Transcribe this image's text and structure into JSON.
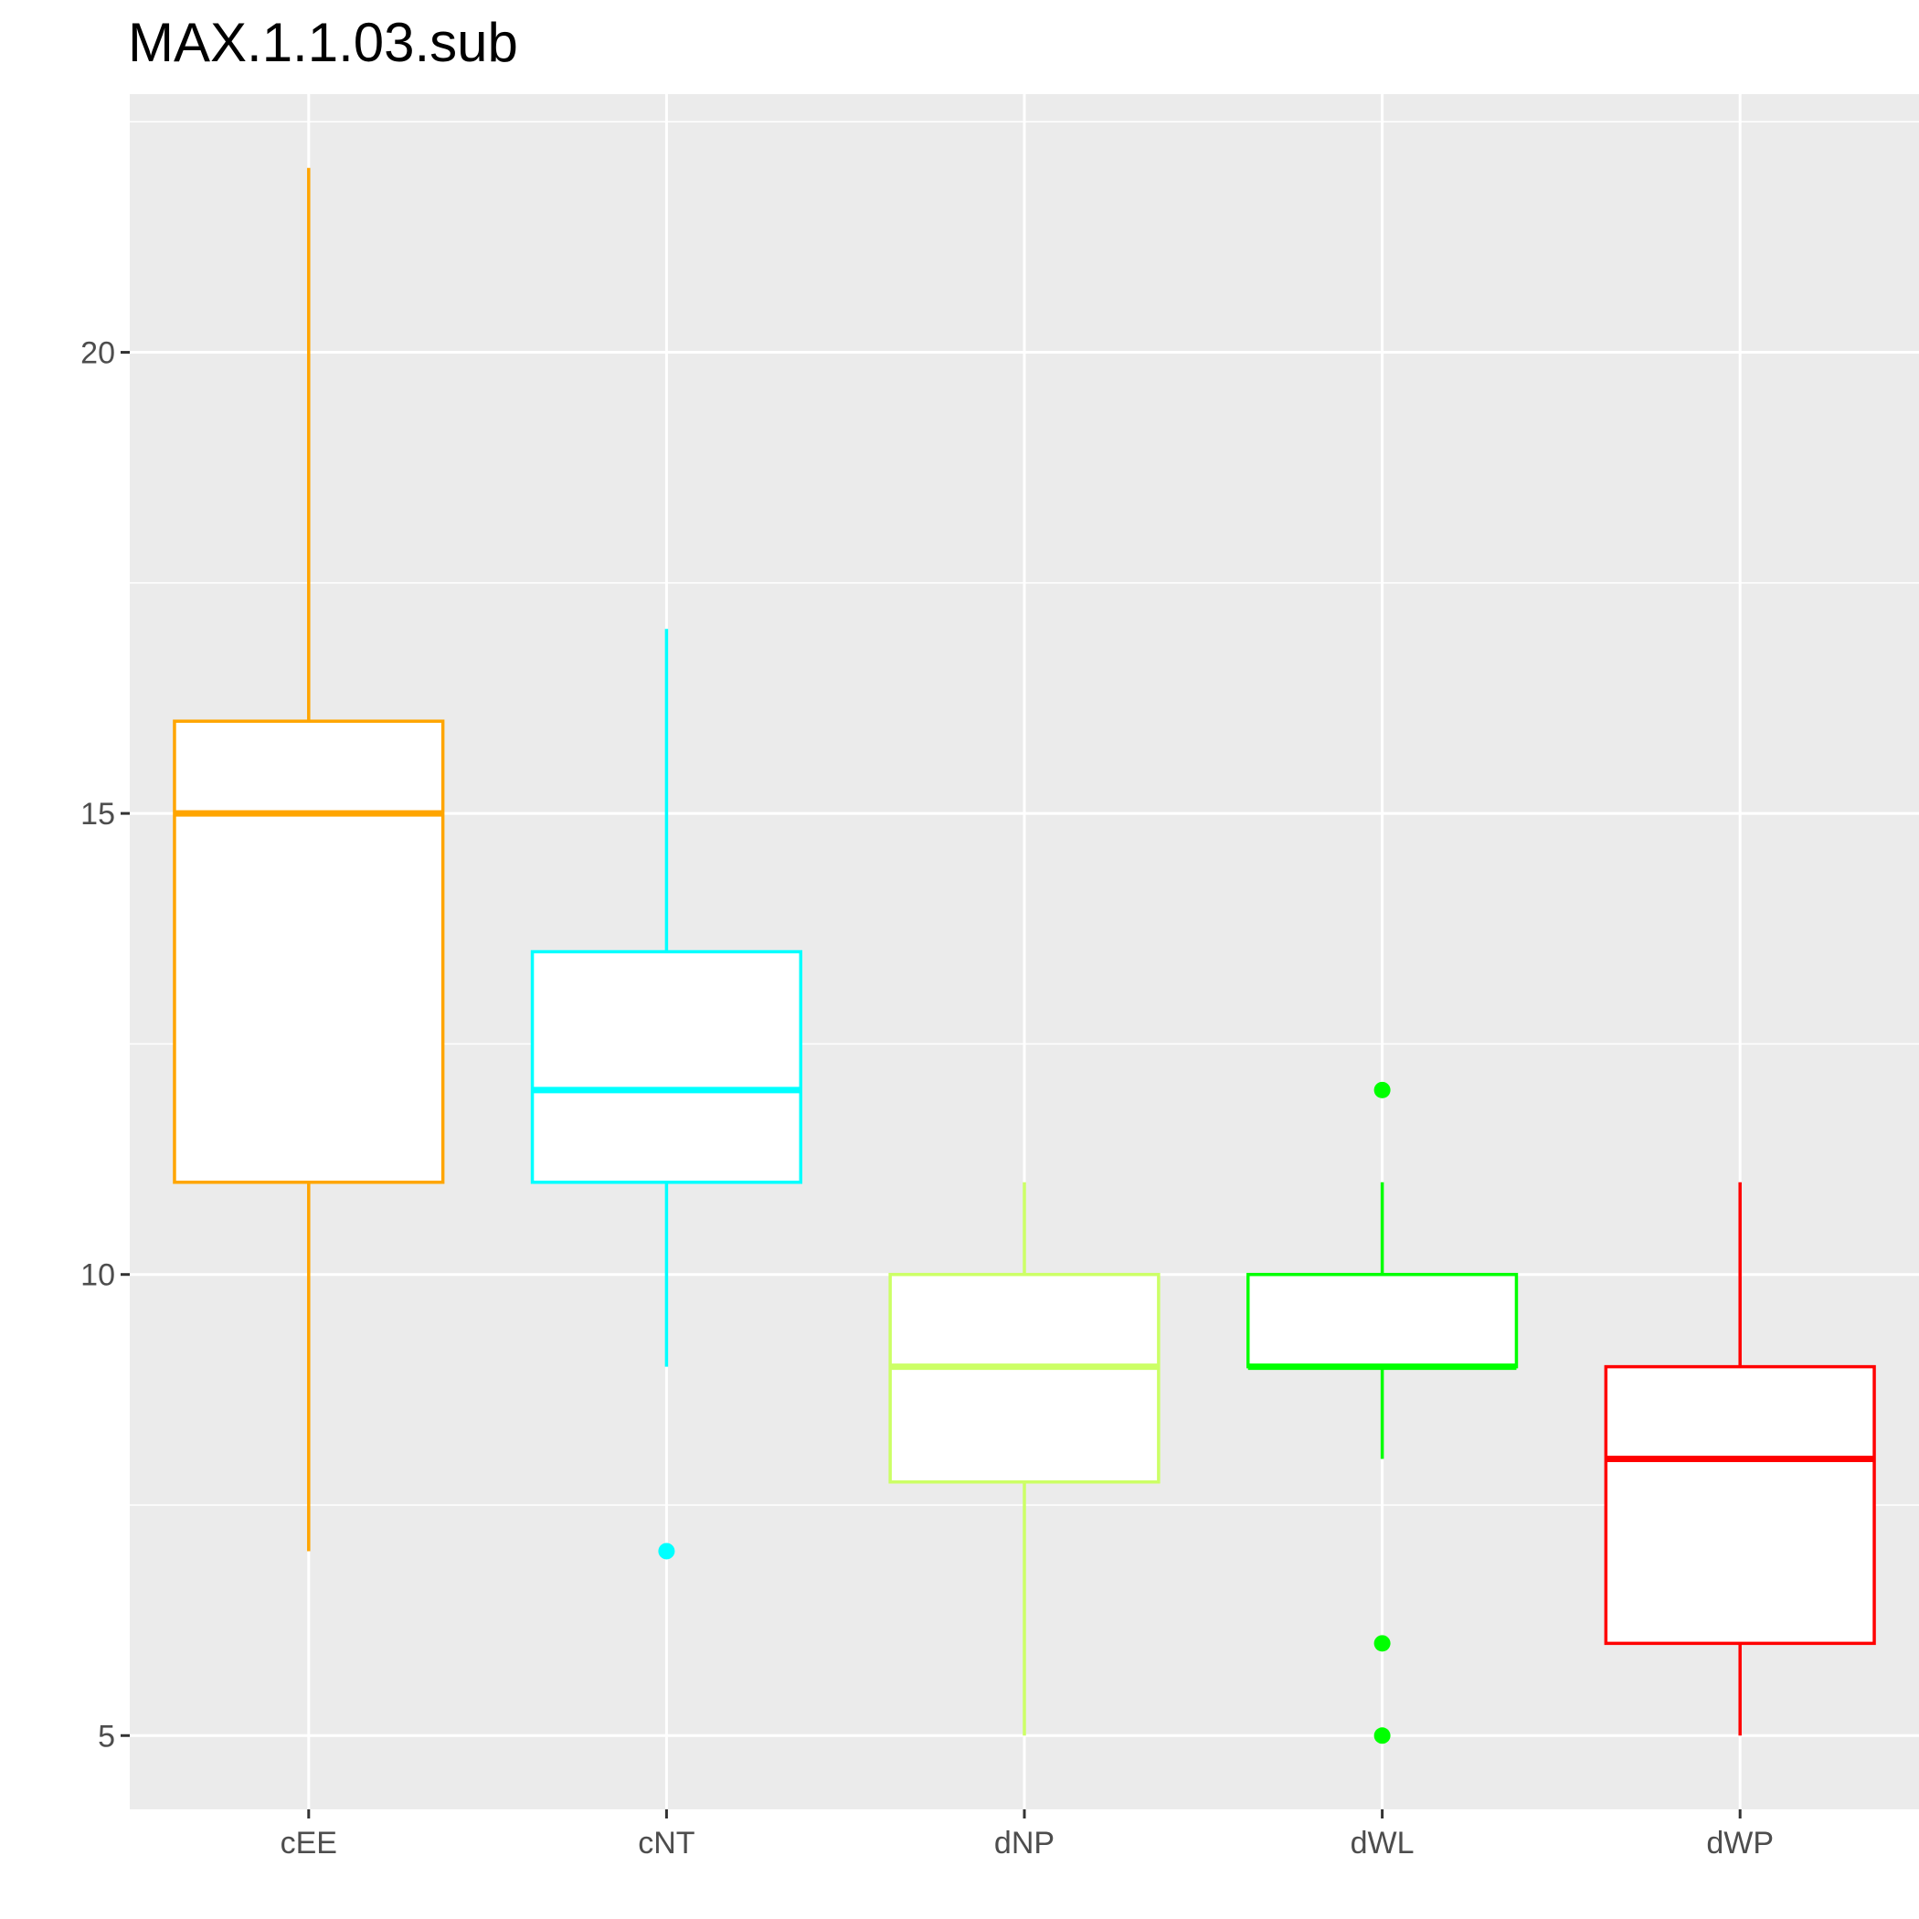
{
  "chart_data": {
    "type": "boxplot",
    "title": "MAX.1.1.03.sub",
    "xlabel": "",
    "ylabel": "",
    "ylim": [
      4.2,
      22.8
    ],
    "yticks": [
      5,
      10,
      15,
      20
    ],
    "grid": true,
    "legend": "none",
    "categories": [
      "cEE",
      "cNT",
      "dNP",
      "dWL",
      "dWP"
    ],
    "boxes": [
      {
        "category": "cEE",
        "color": "#FFA500",
        "whisker_low": 7,
        "q1": 11,
        "median": 15,
        "q3": 16,
        "whisker_high": 22,
        "outliers": []
      },
      {
        "category": "cNT",
        "color": "#00FFFF",
        "whisker_low": 9,
        "q1": 11,
        "median": 12,
        "q3": 13.5,
        "whisker_high": 17,
        "outliers": [
          7
        ]
      },
      {
        "category": "dNP",
        "color": "#CCFF66",
        "whisker_low": 5,
        "q1": 7.75,
        "median": 9,
        "q3": 10,
        "whisker_high": 11,
        "outliers": []
      },
      {
        "category": "dWL",
        "color": "#00FF00",
        "whisker_low": 8,
        "q1": 9,
        "median": 9,
        "q3": 10,
        "whisker_high": 11,
        "outliers": [
          12,
          6,
          5
        ]
      },
      {
        "category": "dWP",
        "color": "#FF0000",
        "whisker_low": 5,
        "q1": 6,
        "median": 8,
        "q3": 9,
        "whisker_high": 11,
        "outliers": []
      }
    ]
  }
}
